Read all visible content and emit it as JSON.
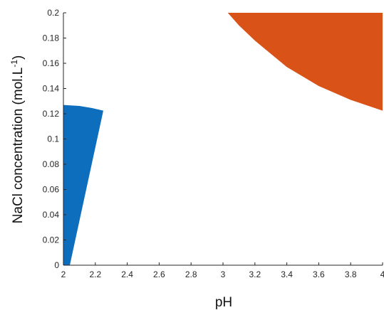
{
  "chart_data": {
    "type": "area",
    "xlabel": "pH",
    "ylabel_main": "NaCl concentration (mol.L",
    "ylabel_sup": "-1",
    "ylabel_close": ")",
    "xlim": [
      2,
      4
    ],
    "ylim": [
      0,
      0.2
    ],
    "xticks": [
      2,
      2.2,
      2.4,
      2.6,
      2.8,
      3,
      3.2,
      3.4,
      3.6,
      3.8,
      4
    ],
    "xtick_labels": [
      "2",
      "2.2",
      "2.4",
      "2.6",
      "2.8",
      "3",
      "3.2",
      "3.4",
      "3.6",
      "3.8",
      "4"
    ],
    "yticks": [
      0,
      0.02,
      0.04,
      0.06,
      0.08,
      0.1,
      0.12,
      0.14,
      0.16,
      0.18,
      0.2
    ],
    "ytick_labels": [
      "0",
      "0.02",
      "0.04",
      "0.06",
      "0.08",
      "0.1",
      "0.12",
      "0.14",
      "0.16",
      "0.18",
      "0.2"
    ],
    "grid": false,
    "regions": [
      {
        "color": "#0d6ebd",
        "polygon": [
          [
            2.0,
            0.0
          ],
          [
            2.04,
            0.0
          ],
          [
            2.25,
            0.1225
          ],
          [
            2.18,
            0.1245
          ],
          [
            2.1,
            0.1262
          ],
          [
            2.0,
            0.127
          ]
        ]
      },
      {
        "color": "#d95319",
        "polygon": [
          [
            3.03,
            0.2
          ],
          [
            4.0,
            0.2
          ],
          [
            4.0,
            0.1225
          ],
          [
            3.8,
            0.131
          ],
          [
            3.6,
            0.142
          ],
          [
            3.4,
            0.157
          ],
          [
            3.2,
            0.178
          ],
          [
            3.1,
            0.19
          ],
          [
            3.03,
            0.2
          ]
        ]
      }
    ]
  }
}
